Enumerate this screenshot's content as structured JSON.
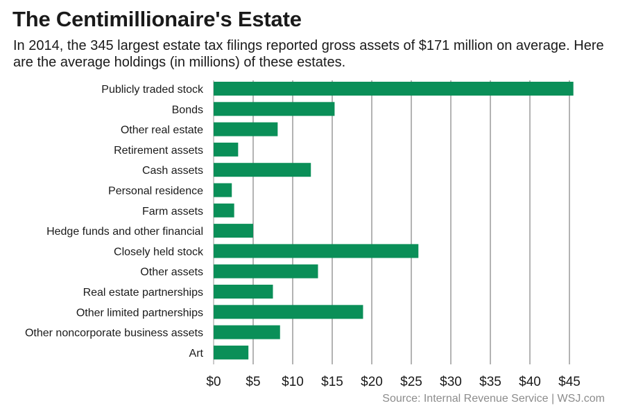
{
  "header": {
    "title": "The Centimillionaire's Estate",
    "subtitle": "In 2014, the 345 largest estate tax filings reported gross assets of $171 million on average. Here are the average holdings (in millions) of these estates."
  },
  "footer": {
    "source": "Source: Internal Revenue Service  |  WSJ.com"
  },
  "colors": {
    "bar": "#0a8f58",
    "grid": "#b3b3b3",
    "text": "#1a1a1a",
    "source": "#8c8c8c"
  },
  "chart_data": {
    "type": "bar",
    "orientation": "horizontal",
    "categories": [
      "Publicly traded stock",
      "Bonds",
      "Other real estate",
      "Retirement assets",
      "Cash assets",
      "Personal residence",
      "Farm assets",
      "Hedge funds and other financial",
      "Closely held stock",
      "Other assets",
      "Real estate partnerships",
      "Other limited partnerships",
      "Other noncorporate business assets",
      "Art"
    ],
    "values": [
      45.5,
      15.3,
      8.1,
      3.1,
      12.3,
      2.3,
      2.6,
      5.0,
      25.9,
      13.2,
      7.5,
      18.9,
      8.4,
      4.4
    ],
    "xticks": [
      "$0",
      "$5",
      "$10",
      "$15",
      "$20",
      "$25",
      "$30",
      "$35",
      "$40",
      "$45"
    ],
    "xlim": [
      0,
      45.5
    ],
    "grid": true
  }
}
